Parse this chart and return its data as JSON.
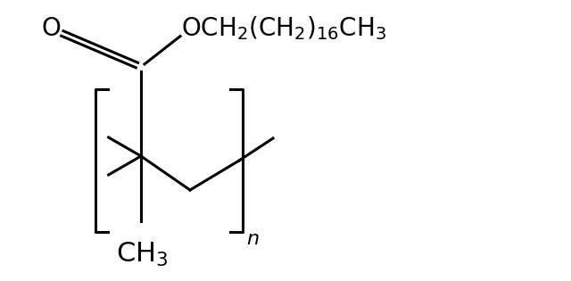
{
  "bg_color": "#ffffff",
  "line_color": "#000000",
  "line_width": 2.2,
  "font_size_main": 20,
  "font_size_sub": 14,
  "font_size_n": 16,
  "figsize": [
    6.4,
    3.15
  ],
  "dpi": 100
}
